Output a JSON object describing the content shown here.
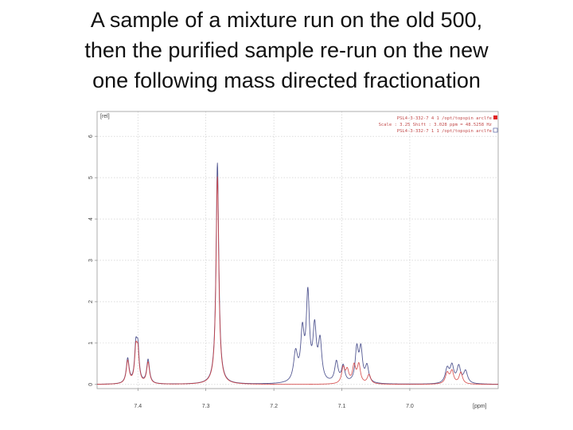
{
  "title_lines": [
    "A sample of a mixture run on the old 500,",
    "then the purified sample re-run on the new",
    "one following mass directed fractionation"
  ],
  "chart_data": {
    "type": "line",
    "title": "A sample of a mixture run on the old 500, then the purified sample re-run on the new one following mass directed fractionation",
    "xlabel": "[ppm]",
    "ylabel": "[rel]",
    "x_reversed": true,
    "xlim": [
      7.46,
      6.87
    ],
    "ylim": [
      -0.1,
      6.6
    ],
    "x_ticks": [
      7.4,
      7.3,
      7.2,
      7.1,
      7.0
    ],
    "y_ticks": [
      0,
      1,
      2,
      3,
      4,
      5,
      6
    ],
    "grid": true,
    "legend_lines": [
      "PSL4-3-332-7  4  1  /opt/topspin  arclfe",
      "Scale : 3.25 Shift : 3.028 ppm = 48.5258 Hz",
      "PSL4-3-332-7  1  1  /opt/topspin  arclfe"
    ],
    "legend_position": "top-right",
    "series": [
      {
        "color": "#4a4f8c",
        "peaks": [
          {
            "x": 7.415,
            "h": 0.6,
            "w": 0.0025
          },
          {
            "x": 7.403,
            "h": 0.82,
            "w": 0.0022
          },
          {
            "x": 7.4,
            "h": 0.78,
            "w": 0.0022
          },
          {
            "x": 7.385,
            "h": 0.58,
            "w": 0.0025
          },
          {
            "x": 7.283,
            "h": 5.35,
            "w": 0.0024
          },
          {
            "x": 7.168,
            "h": 0.7,
            "w": 0.0035
          },
          {
            "x": 7.158,
            "h": 1.15,
            "w": 0.003
          },
          {
            "x": 7.15,
            "h": 2.05,
            "w": 0.0028
          },
          {
            "x": 7.14,
            "h": 1.25,
            "w": 0.003
          },
          {
            "x": 7.132,
            "h": 0.95,
            "w": 0.003
          },
          {
            "x": 7.108,
            "h": 0.5,
            "w": 0.003
          },
          {
            "x": 7.098,
            "h": 0.4,
            "w": 0.003
          },
          {
            "x": 7.078,
            "h": 0.8,
            "w": 0.0028
          },
          {
            "x": 7.072,
            "h": 0.78,
            "w": 0.0028
          },
          {
            "x": 7.063,
            "h": 0.4,
            "w": 0.003
          },
          {
            "x": 6.945,
            "h": 0.35,
            "w": 0.0035
          },
          {
            "x": 6.938,
            "h": 0.4,
            "w": 0.0032
          },
          {
            "x": 6.928,
            "h": 0.4,
            "w": 0.0032
          },
          {
            "x": 6.918,
            "h": 0.3,
            "w": 0.0035
          }
        ]
      },
      {
        "color": "#d23c3c",
        "peaks": [
          {
            "x": 7.415,
            "h": 0.55,
            "w": 0.0025
          },
          {
            "x": 7.403,
            "h": 0.75,
            "w": 0.0022
          },
          {
            "x": 7.4,
            "h": 0.7,
            "w": 0.0022
          },
          {
            "x": 7.385,
            "h": 0.52,
            "w": 0.0025
          },
          {
            "x": 7.283,
            "h": 5.02,
            "w": 0.0024
          },
          {
            "x": 7.098,
            "h": 0.38,
            "w": 0.0028
          },
          {
            "x": 7.092,
            "h": 0.3,
            "w": 0.0028
          },
          {
            "x": 7.082,
            "h": 0.42,
            "w": 0.0028
          },
          {
            "x": 7.075,
            "h": 0.45,
            "w": 0.0028
          },
          {
            "x": 7.06,
            "h": 0.22,
            "w": 0.003
          },
          {
            "x": 6.945,
            "h": 0.26,
            "w": 0.0032
          },
          {
            "x": 6.938,
            "h": 0.3,
            "w": 0.003
          },
          {
            "x": 6.925,
            "h": 0.28,
            "w": 0.003
          }
        ]
      }
    ]
  }
}
